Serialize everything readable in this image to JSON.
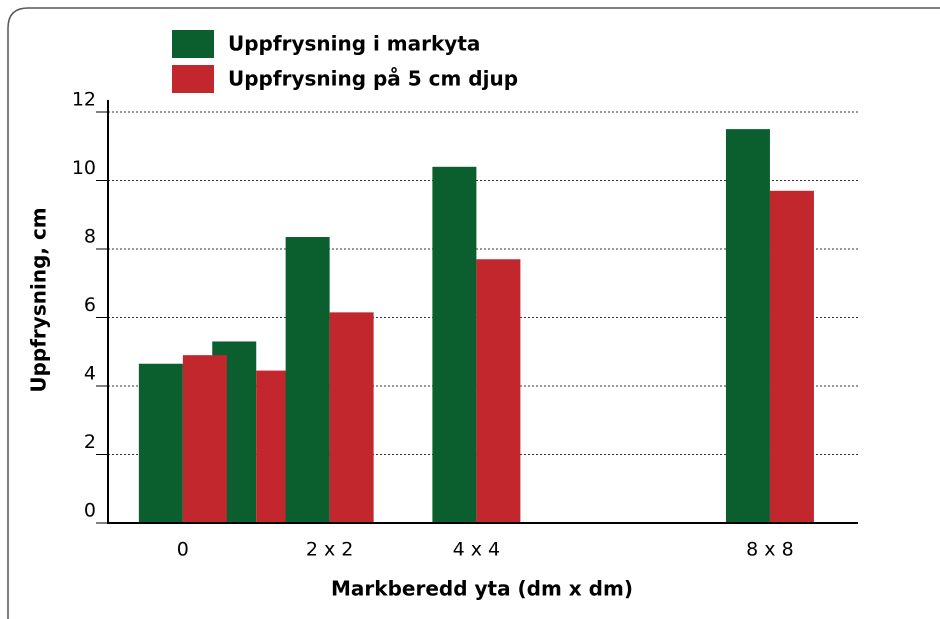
{
  "chart_data": {
    "type": "bar",
    "x_label": "Markberedd yta (dm x dm)",
    "y_label": "Uppfrysning, cm",
    "x": [
      0,
      1,
      2,
      4,
      8
    ],
    "series": [
      {
        "name": "Uppfrysning i markyta",
        "color": "#0b5e2e",
        "values": [
          4.65,
          5.3,
          8.35,
          10.4,
          11.5
        ]
      },
      {
        "name": "Uppfrysning på 5 cm djup",
        "color": "#c1272d",
        "values": [
          4.9,
          4.45,
          6.15,
          7.7,
          9.7
        ]
      }
    ],
    "xlim": [
      -1.02,
      9.2
    ],
    "xticks": [
      0,
      {
        "value": 2,
        "label": "2 x 2"
      },
      {
        "value": 4,
        "label": "4 x 4"
      },
      {
        "value": 8,
        "label": "8 x 8"
      }
    ],
    "ylim": [
      0,
      12
    ],
    "yticks": [
      0,
      2,
      4,
      6,
      8,
      10,
      12
    ],
    "grid": true,
    "legend": "top"
  }
}
